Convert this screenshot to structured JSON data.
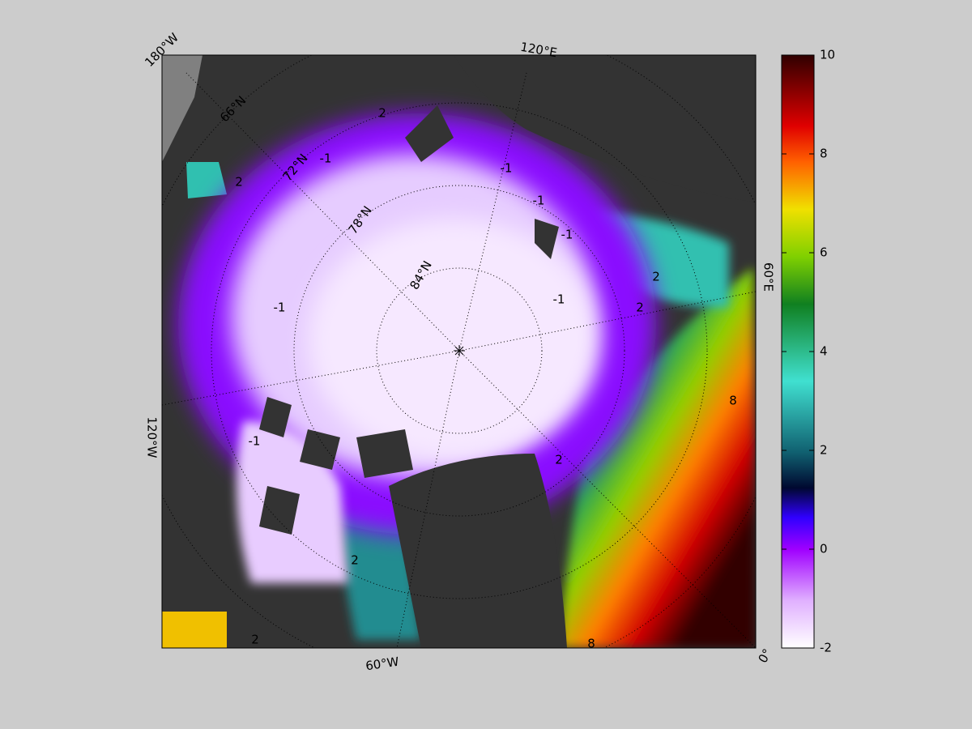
{
  "map": {
    "longitude_labels": [
      "180°W",
      "120°E",
      "60°E",
      "0°",
      "60°W",
      "120°W"
    ],
    "latitude_labels": [
      "66°N",
      "72°N",
      "78°N",
      "84°N"
    ],
    "contour_labels": [
      "-1",
      "-1",
      "-1",
      "-1",
      "-1",
      "-1",
      "2",
      "2",
      "2",
      "2",
      "2",
      "2",
      "8",
      "8",
      "-1",
      "2"
    ]
  },
  "colorbar": {
    "range": [
      -2,
      10
    ],
    "ticks": [
      -2,
      0,
      2,
      4,
      6,
      8,
      10
    ]
  }
}
